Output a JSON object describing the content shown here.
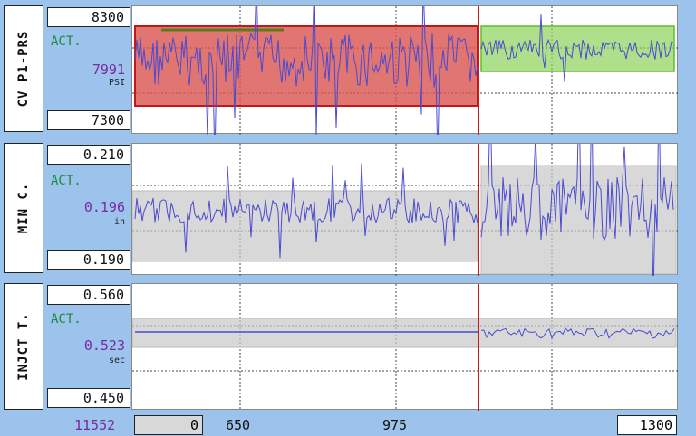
{
  "colors": {
    "panel_bg": "#9cc3ec",
    "trace": "#4a4ad0",
    "red_zone": "#d9534f",
    "green_zone": "#8bd35a",
    "gray_zone": "#c8c8c8",
    "cursor": "#c41a1a"
  },
  "panels": [
    {
      "label": "CV P1-PRS",
      "max": "8300",
      "min": "7300",
      "act_label": "ACT.",
      "act_value": "7991",
      "unit": "PSI"
    },
    {
      "label": "MIN C.",
      "max": "0.210",
      "min": "0.190",
      "act_label": "ACT.",
      "act_value": "0.196",
      "unit": "in"
    },
    {
      "label": "INJCT T.",
      "max": "0.560",
      "min": "0.450",
      "act_label": "ACT.",
      "act_value": "0.523",
      "unit": "sec"
    }
  ],
  "footer": {
    "count": "11552",
    "start": "0",
    "tick1": "650",
    "tick2": "975",
    "end": "1300"
  }
}
